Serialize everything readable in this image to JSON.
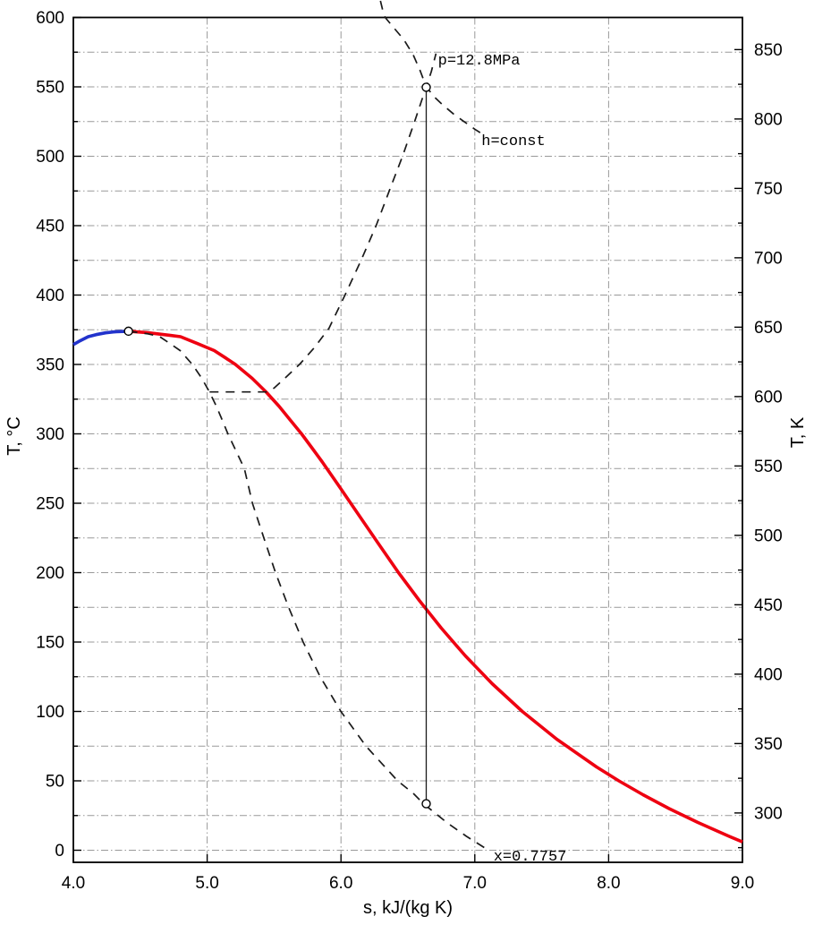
{
  "figure": {
    "background": "#ffffff",
    "axis_color": "#000000",
    "grid_color": "#999999"
  },
  "chart_data": {
    "type": "line",
    "title": "",
    "xlabel": "s, kJ/(kg K)",
    "ylabel_left": "T, °C",
    "ylabel_right": "T, K",
    "xlim": [
      4.0,
      9.0
    ],
    "ylim_c": [
      0,
      600
    ],
    "ylim_k": [
      300,
      850
    ],
    "grid": true,
    "legend": "none",
    "x_ticks": {
      "values": [
        4,
        5,
        6,
        7,
        8,
        9
      ],
      "labels": [
        "4.0",
        "5.0",
        "6.0",
        "7.0",
        "8.0",
        "9.0"
      ]
    },
    "y_left_ticks": {
      "values": [
        0,
        50,
        100,
        150,
        200,
        250,
        300,
        350,
        400,
        450,
        500,
        550,
        600
      ],
      "labels": [
        "0",
        "50",
        "100",
        "150",
        "200",
        "250",
        "300",
        "350",
        "400",
        "450",
        "500",
        "550",
        "600"
      ],
      "minor_values": [
        25,
        75,
        125,
        175,
        225,
        275,
        325,
        375,
        425,
        475,
        525,
        575
      ]
    },
    "y_right_ticks": {
      "values": [
        300,
        350,
        400,
        450,
        500,
        550,
        600,
        650,
        700,
        750,
        800,
        850
      ],
      "labels": [
        "300",
        "350",
        "400",
        "450",
        "500",
        "550",
        "600",
        "650",
        "700",
        "750",
        "800",
        "850"
      ],
      "minor_values": [
        275,
        325,
        375,
        425,
        475,
        525,
        575,
        625,
        675,
        725,
        775,
        825
      ]
    },
    "gridlines": {
      "vertical_s": [
        5,
        6,
        7,
        8
      ],
      "horizontal_c_start": 0,
      "horizontal_c_end": 575,
      "horizontal_c_step": 25
    },
    "series": [
      {
        "name": "saturated-liquid-line",
        "color": "#2233cc",
        "style": "solid",
        "width": 3.6,
        "points": [
          [
            4.0,
            364.3
          ],
          [
            4.05,
            367.0
          ],
          [
            4.111,
            370.0
          ],
          [
            4.17,
            371.5
          ],
          [
            4.24,
            372.8
          ],
          [
            4.32,
            373.6
          ],
          [
            4.412,
            373.95
          ]
        ]
      },
      {
        "name": "saturated-vapor-line",
        "color": "#ee0011",
        "style": "solid",
        "width": 3.6,
        "points": [
          [
            4.412,
            373.95
          ],
          [
            4.55,
            373.0
          ],
          [
            4.72,
            371.0
          ],
          [
            4.801,
            370.0
          ],
          [
            4.93,
            365.0
          ],
          [
            5.053,
            360.0
          ],
          [
            5.134,
            355.0
          ],
          [
            5.211,
            350.0
          ],
          [
            5.336,
            340.0
          ],
          [
            5.442,
            330.0
          ],
          [
            5.536,
            320.0
          ],
          [
            5.62,
            310.0
          ],
          [
            5.705,
            300.0
          ],
          [
            5.782,
            290.0
          ],
          [
            5.858,
            280.0
          ],
          [
            6.002,
            260.0
          ],
          [
            6.144,
            240.0
          ],
          [
            6.286,
            220.0
          ],
          [
            6.43,
            200.0
          ],
          [
            6.585,
            180.0
          ],
          [
            6.75,
            160.0
          ],
          [
            6.93,
            140.0
          ],
          [
            7.13,
            120.0
          ],
          [
            7.355,
            100.0
          ],
          [
            7.612,
            80.0
          ],
          [
            7.91,
            60.0
          ],
          [
            8.076,
            50.0
          ],
          [
            8.257,
            40.0
          ],
          [
            8.452,
            30.0
          ],
          [
            8.667,
            20.0
          ],
          [
            8.901,
            10.0
          ],
          [
            9.0,
            6.0
          ]
        ]
      },
      {
        "name": "isobar-curve",
        "color": "#1a1a1a",
        "style": "dashed",
        "width": 1.7,
        "points": [
          [
            5.018,
            330.2
          ],
          [
            5.442,
            330.2
          ],
          [
            5.5,
            333.0
          ],
          [
            5.58,
            340.0
          ],
          [
            5.69,
            350.0
          ],
          [
            5.8,
            362.0
          ],
          [
            5.91,
            376.0
          ],
          [
            6.03,
            400.0
          ],
          [
            6.15,
            425.0
          ],
          [
            6.263,
            450.0
          ],
          [
            6.36,
            475.0
          ],
          [
            6.46,
            500.0
          ],
          [
            6.55,
            525.0
          ],
          [
            6.637,
            550.0
          ],
          [
            6.675,
            561.0
          ],
          [
            6.71,
            574.0
          ]
        ]
      },
      {
        "name": "isenthalpic-curve",
        "color": "#1a1a1a",
        "style": "dashed",
        "width": 1.7,
        "points": [
          [
            6.295,
            612.0
          ],
          [
            6.315,
            604.0
          ],
          [
            6.33,
            600.0
          ],
          [
            6.4,
            592.0
          ],
          [
            6.47,
            584.0
          ],
          [
            6.54,
            573.0
          ],
          [
            6.59,
            562.0
          ],
          [
            6.637,
            550.0
          ],
          [
            6.7,
            542.5
          ],
          [
            6.76,
            537.0
          ],
          [
            6.84,
            530.5
          ],
          [
            6.92,
            525.0
          ],
          [
            7.0,
            519.5
          ],
          [
            7.04,
            517.0
          ]
        ]
      },
      {
        "name": "quality-curve",
        "color": "#1a1a1a",
        "style": "dashed",
        "width": 1.7,
        "points": [
          [
            4.412,
            373.95
          ],
          [
            4.5,
            372.8
          ],
          [
            4.56,
            372.0
          ],
          [
            4.646,
            370.0
          ],
          [
            4.724,
            365.0
          ],
          [
            4.798,
            360.0
          ],
          [
            4.89,
            350.0
          ],
          [
            4.96,
            340.0
          ],
          [
            5.018,
            330.0
          ],
          [
            5.068,
            320.0
          ],
          [
            5.112,
            310.0
          ],
          [
            5.155,
            300.0
          ],
          [
            5.278,
            275.0
          ],
          [
            5.338,
            250.0
          ],
          [
            5.424,
            225.0
          ],
          [
            5.511,
            200.0
          ],
          [
            5.609,
            175.0
          ],
          [
            5.717,
            150.0
          ],
          [
            5.845,
            125.0
          ],
          [
            5.999,
            100.0
          ],
          [
            6.187,
            75.0
          ],
          [
            6.423,
            50.0
          ],
          [
            6.54,
            41.0
          ],
          [
            6.617,
            33.5
          ],
          [
            6.7,
            27.0
          ],
          [
            6.79,
            20.0
          ],
          [
            6.938,
            10.0
          ],
          [
            7.086,
            1.0
          ]
        ]
      },
      {
        "name": "isentropic-process-line",
        "color": "#1a1a1a",
        "style": "solid",
        "width": 1.3,
        "points": [
          [
            6.637,
            549.7
          ],
          [
            6.637,
            33.5
          ]
        ]
      }
    ],
    "markers": [
      {
        "name": "critical-point",
        "s": 4.412,
        "T": 373.95
      },
      {
        "name": "state-point-top",
        "s": 6.637,
        "T": 549.7
      },
      {
        "name": "state-point-bottom",
        "s": 6.637,
        "T": 33.5
      }
    ],
    "annotations": [
      {
        "name": "isobar-label",
        "text": "p=12.8MPa",
        "s": 6.725,
        "T": 566.0,
        "anchor": "start"
      },
      {
        "name": "isenthalp-label",
        "text": "h=const",
        "s": 7.05,
        "T": 508.0,
        "anchor": "start"
      },
      {
        "name": "quality-label",
        "text": "x=0.7757",
        "s": 7.14,
        "T": -7.5,
        "anchor": "start"
      }
    ]
  }
}
